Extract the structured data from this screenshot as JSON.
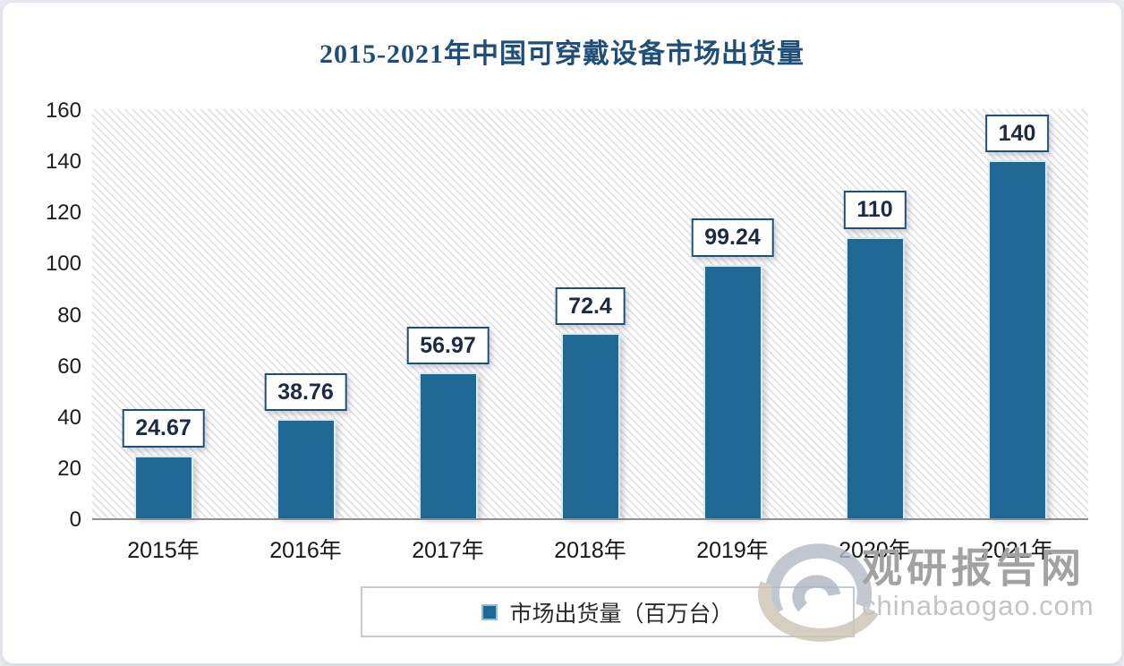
{
  "title": "2015-2021年中国可穿戴设备市场出货量",
  "chart_data": {
    "type": "bar",
    "title": "2015-2021年中国可穿戴设备市场出货量",
    "categories": [
      "2015年",
      "2016年",
      "2017年",
      "2018年",
      "2019年",
      "2020年",
      "2021年"
    ],
    "values": [
      24.67,
      38.76,
      56.97,
      72.4,
      99.24,
      110,
      140
    ],
    "data_labels": [
      "24.67",
      "38.76",
      "56.97",
      "72.4",
      "99.24",
      "110",
      "140"
    ],
    "xlabel": "",
    "ylabel": "",
    "ylim": [
      0,
      160
    ],
    "yticks": [
      0,
      20,
      40,
      60,
      80,
      100,
      120,
      140,
      160
    ],
    "grid": false,
    "legend_position": "bottom",
    "series_name": "市场出货量（百万台）",
    "bar_color": "#1F6893"
  },
  "legend": {
    "label": "市场出货量（百万台）"
  },
  "watermark": {
    "site_name": "观研报告网",
    "site_url": "chinabaogao.com"
  },
  "colors": {
    "bar": "#1F6893",
    "title": "#1F4E79",
    "value_box_border": "#1d4f7d",
    "axis_line": "#8f8f8f",
    "watermark_gray": "#a2a2a4"
  }
}
